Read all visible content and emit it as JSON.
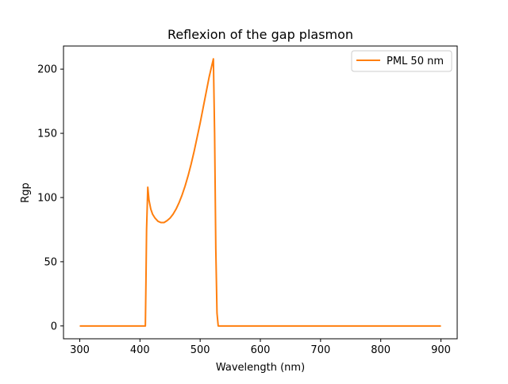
{
  "chart_data": {
    "type": "line",
    "title": "Reflexion of the gap plasmon",
    "xlabel": "Wavelength (nm)",
    "ylabel": "Rgp",
    "xlim": [
      273,
      927
    ],
    "ylim": [
      -10,
      218
    ],
    "xticks": [
      300,
      400,
      500,
      600,
      700,
      800,
      900
    ],
    "yticks": [
      0,
      50,
      100,
      150,
      200
    ],
    "grid": false,
    "legend_position": "top-right",
    "series": [
      {
        "name": "PML 50 nm",
        "color": "#ff7f0e",
        "x": [
          300,
          350,
          400,
          409,
          410,
          411,
          413,
          415,
          418,
          421,
          425,
          430,
          435,
          440,
          445,
          450,
          455,
          460,
          465,
          470,
          475,
          480,
          485,
          490,
          495,
          500,
          505,
          510,
          515,
          520,
          522,
          524,
          526,
          528,
          530,
          550,
          600,
          650,
          700,
          750,
          800,
          850,
          900
        ],
        "y": [
          0,
          0,
          0,
          0,
          35,
          75,
          108,
          98,
          91,
          87,
          84,
          81.5,
          80.5,
          80.5,
          82,
          84,
          87,
          91,
          96,
          102,
          109,
          117,
          126,
          136,
          147,
          158,
          170,
          182,
          194,
          204,
          208,
          150,
          60,
          10,
          0,
          0,
          0,
          0,
          0,
          0,
          0,
          0,
          0
        ]
      }
    ]
  }
}
